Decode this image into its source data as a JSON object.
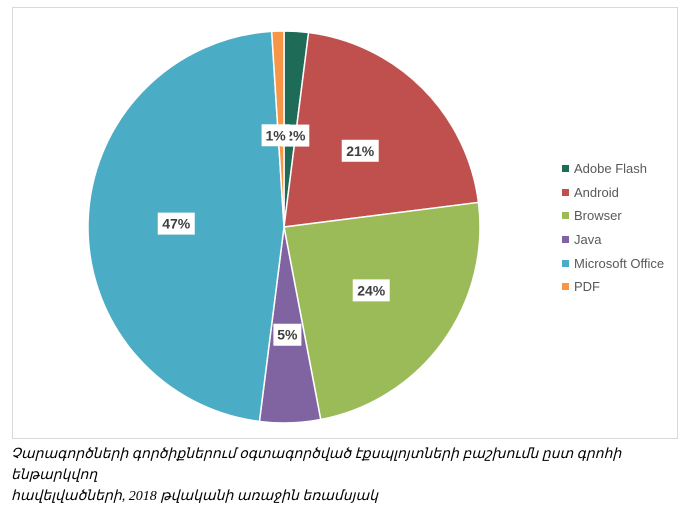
{
  "chart_data": {
    "type": "pie",
    "title": "",
    "categories": [
      "Adobe Flash",
      "Android",
      "Browser",
      "Java",
      "Microsoft Office",
      "PDF"
    ],
    "values": [
      2,
      21,
      24,
      5,
      47,
      1
    ],
    "value_labels": [
      "2%",
      "21%",
      "24%",
      "5%",
      "47%",
      "1%"
    ],
    "colors": [
      "#1e6b57",
      "#c0504d",
      "#9bbb59",
      "#8064a2",
      "#4bacc6",
      "#f79646"
    ],
    "legend_position": "right",
    "start_angle": "top, clockwise"
  },
  "caption": {
    "line1": "Չարագործների գործիքներում օգտագործված էքսպլոյտների բաշխումն ըստ գրոհի ենթարկվող",
    "line2": "հավելվածների, 2018 թվականի առաջին եռամսյակ"
  }
}
